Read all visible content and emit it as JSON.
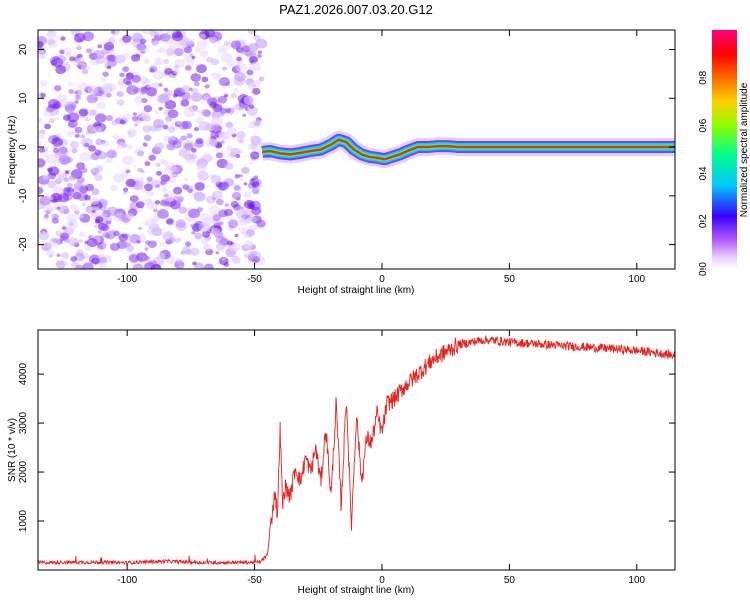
{
  "title": "PAZ1.2026.007.03.20.G12",
  "chart_data": [
    {
      "type": "heatmap",
      "name": "spectrogram",
      "xlabel": "Height of straight line (km)",
      "ylabel": "Frequency (Hz)",
      "xlim": [
        -135,
        115
      ],
      "ylim": [
        -25,
        24
      ],
      "xticks": [
        -100,
        -50,
        0,
        50,
        100
      ],
      "xtick_labels": [
        "-100",
        "-50",
        "0",
        "50",
        "100"
      ],
      "yticks": [
        -20,
        -10,
        0,
        10,
        20
      ],
      "ytick_labels": [
        "-20",
        "-10",
        "0",
        "10",
        "20"
      ],
      "noise_region_km": [
        -135,
        -47
      ],
      "signal_line": {
        "x": [
          -47,
          -44,
          -40,
          -36,
          -32,
          -28,
          -24,
          -20,
          -17,
          -14,
          -11,
          -8,
          -5,
          -2,
          1,
          4,
          7,
          10,
          14,
          18,
          22,
          26,
          30,
          40,
          60,
          80,
          100,
          115
        ],
        "y": [
          -1.0,
          -0.8,
          -1.3,
          -1.5,
          -1.2,
          -0.8,
          -0.5,
          0.5,
          1.5,
          1.0,
          -0.5,
          -1.5,
          -2.0,
          -2.2,
          -2.5,
          -2.0,
          -1.5,
          -0.8,
          0.0,
          0.0,
          0.2,
          0.2,
          0.0,
          0.0,
          0.0,
          0.0,
          0.0,
          0.0
        ]
      }
    },
    {
      "type": "colorbar",
      "name": "normalized-amplitude",
      "label": "Normalized spectral amplitude",
      "range": [
        0.0,
        1.0
      ],
      "ticks": [
        0.0,
        0.2,
        0.4,
        0.6,
        0.8
      ],
      "tick_labels": [
        "0.0",
        "0.2",
        "0.4",
        "0.6",
        "0.8"
      ],
      "colors": [
        "#ffffff",
        "#b35cff",
        "#3a00ff",
        "#00c8ff",
        "#00ff88",
        "#8cff00",
        "#ffd000",
        "#ff6a00",
        "#ff0000",
        "#ff0080"
      ]
    },
    {
      "type": "line",
      "name": "snr",
      "xlabel": "Height of straight line (km)",
      "ylabel": "SNR (10 * v/v)",
      "xlim": [
        -135,
        115
      ],
      "ylim": [
        0,
        4900
      ],
      "xticks": [
        -100,
        -50,
        0,
        50,
        100
      ],
      "xtick_labels": [
        "-100",
        "-50",
        "0",
        "50",
        "100"
      ],
      "yticks": [
        1000,
        2000,
        3000,
        4000
      ],
      "ytick_labels": [
        "1000",
        "2000",
        "3000",
        "4000"
      ],
      "color": "#e8231f",
      "series": [
        {
          "name": "SNR",
          "x": [
            -135,
            -120,
            -100,
            -85,
            -70,
            -55,
            -48,
            -45,
            -43,
            -42,
            -41,
            -40,
            -39,
            -38,
            -36,
            -34,
            -32,
            -30,
            -28,
            -26,
            -24,
            -22,
            -20,
            -18,
            -16,
            -14,
            -12,
            -10,
            -8,
            -6,
            -4,
            -2,
            0,
            2,
            5,
            8,
            12,
            16,
            20,
            25,
            30,
            35,
            40,
            45,
            50,
            60,
            70,
            80,
            90,
            100,
            110,
            115
          ],
          "y": [
            150,
            160,
            150,
            180,
            150,
            155,
            160,
            300,
            1200,
            1600,
            1100,
            2900,
            1300,
            1700,
            1500,
            2100,
            1800,
            2300,
            2000,
            2500,
            1800,
            2900,
            1500,
            3400,
            1300,
            3550,
            900,
            3200,
            1800,
            2700,
            2600,
            3200,
            2800,
            3400,
            3500,
            3700,
            3900,
            4100,
            4300,
            4450,
            4600,
            4650,
            4700,
            4680,
            4650,
            4620,
            4580,
            4550,
            4520,
            4480,
            4420,
            4380
          ]
        }
      ]
    }
  ]
}
